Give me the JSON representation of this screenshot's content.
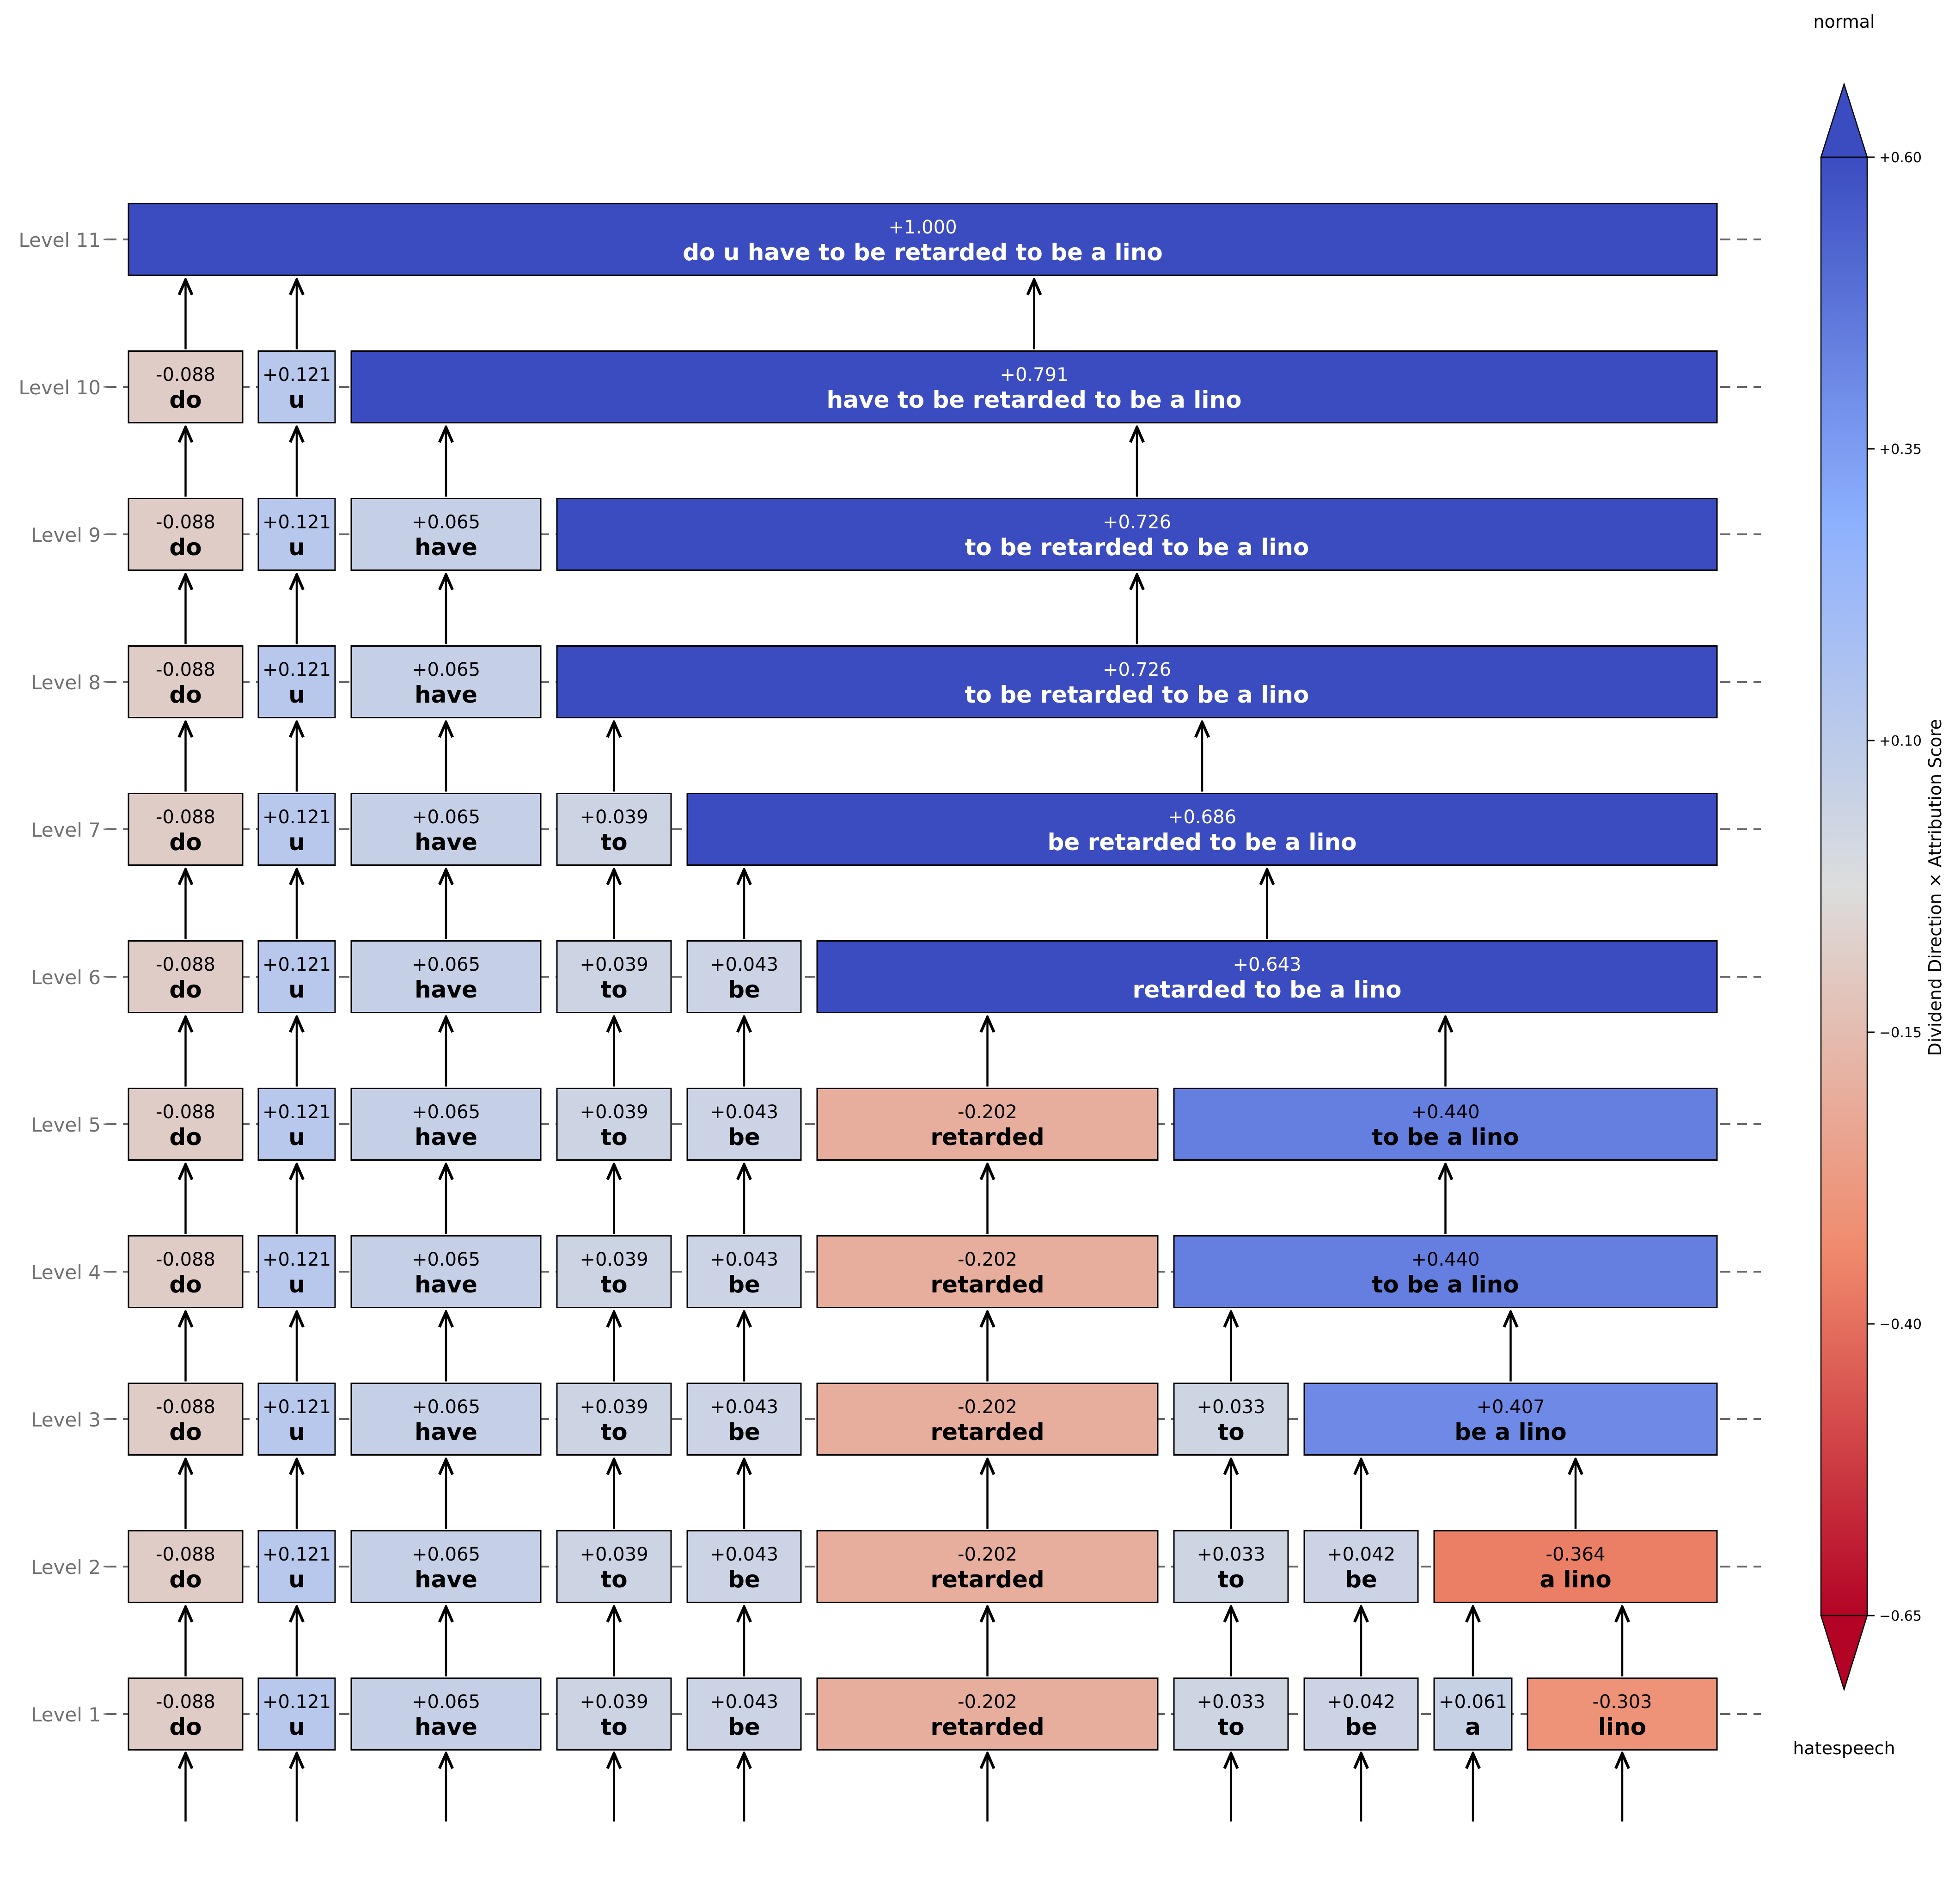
{
  "legend": {
    "top_label": "normal",
    "bottom_label": "hatespeech",
    "axis_label": "Dividend Direction × Attribution Score",
    "ticks": [
      "+0.60",
      "+0.35",
      "+0.10",
      "−0.15",
      "−0.40",
      "−0.65"
    ],
    "tick_values": [
      0.6,
      0.35,
      0.1,
      -0.15,
      -0.4,
      -0.65
    ],
    "range": [
      -0.65,
      0.6
    ],
    "colormap": [
      "#b40426",
      "#f08a6c",
      "#dcdddd",
      "#8db0fe",
      "#3b4cc0"
    ]
  },
  "tokens": [
    "do",
    "u",
    "have",
    "to",
    "be",
    "retarded",
    "to",
    "be",
    "a",
    "lino"
  ],
  "colors": {
    "box_border": "#000000",
    "level_label": "#707070",
    "dashed_line": "#666666",
    "arrow": "#000000"
  },
  "levels": [
    {
      "label": "Level 11",
      "nodes": [
        {
          "score": "+1.000",
          "text": "do u have to be retarded to be a lino",
          "value": 1.0,
          "start": 0,
          "end": 9
        }
      ]
    },
    {
      "label": "Level 10",
      "nodes": [
        {
          "score": "-0.088",
          "text": "do",
          "value": -0.088,
          "start": 0,
          "end": 0
        },
        {
          "score": "+0.121",
          "text": "u",
          "value": 0.121,
          "start": 1,
          "end": 1
        },
        {
          "score": "+0.791",
          "text": "have to be retarded to be a lino",
          "value": 0.791,
          "start": 2,
          "end": 9
        }
      ]
    },
    {
      "label": "Level 9",
      "nodes": [
        {
          "score": "-0.088",
          "text": "do",
          "value": -0.088,
          "start": 0,
          "end": 0
        },
        {
          "score": "+0.121",
          "text": "u",
          "value": 0.121,
          "start": 1,
          "end": 1
        },
        {
          "score": "+0.065",
          "text": "have",
          "value": 0.065,
          "start": 2,
          "end": 2
        },
        {
          "score": "+0.726",
          "text": "to be retarded to be a lino",
          "value": 0.726,
          "start": 3,
          "end": 9
        }
      ]
    },
    {
      "label": "Level 8",
      "nodes": [
        {
          "score": "-0.088",
          "text": "do",
          "value": -0.088,
          "start": 0,
          "end": 0
        },
        {
          "score": "+0.121",
          "text": "u",
          "value": 0.121,
          "start": 1,
          "end": 1
        },
        {
          "score": "+0.065",
          "text": "have",
          "value": 0.065,
          "start": 2,
          "end": 2
        },
        {
          "score": "+0.726",
          "text": "to be retarded to be a lino",
          "value": 0.726,
          "start": 3,
          "end": 9
        }
      ]
    },
    {
      "label": "Level 7",
      "nodes": [
        {
          "score": "-0.088",
          "text": "do",
          "value": -0.088,
          "start": 0,
          "end": 0
        },
        {
          "score": "+0.121",
          "text": "u",
          "value": 0.121,
          "start": 1,
          "end": 1
        },
        {
          "score": "+0.065",
          "text": "have",
          "value": 0.065,
          "start": 2,
          "end": 2
        },
        {
          "score": "+0.039",
          "text": "to",
          "value": 0.039,
          "start": 3,
          "end": 3
        },
        {
          "score": "+0.686",
          "text": "be retarded to be a lino",
          "value": 0.686,
          "start": 4,
          "end": 9
        }
      ]
    },
    {
      "label": "Level 6",
      "nodes": [
        {
          "score": "-0.088",
          "text": "do",
          "value": -0.088,
          "start": 0,
          "end": 0
        },
        {
          "score": "+0.121",
          "text": "u",
          "value": 0.121,
          "start": 1,
          "end": 1
        },
        {
          "score": "+0.065",
          "text": "have",
          "value": 0.065,
          "start": 2,
          "end": 2
        },
        {
          "score": "+0.039",
          "text": "to",
          "value": 0.039,
          "start": 3,
          "end": 3
        },
        {
          "score": "+0.043",
          "text": "be",
          "value": 0.043,
          "start": 4,
          "end": 4
        },
        {
          "score": "+0.643",
          "text": "retarded to be a lino",
          "value": 0.643,
          "start": 5,
          "end": 9
        }
      ]
    },
    {
      "label": "Level 5",
      "nodes": [
        {
          "score": "-0.088",
          "text": "do",
          "value": -0.088,
          "start": 0,
          "end": 0
        },
        {
          "score": "+0.121",
          "text": "u",
          "value": 0.121,
          "start": 1,
          "end": 1
        },
        {
          "score": "+0.065",
          "text": "have",
          "value": 0.065,
          "start": 2,
          "end": 2
        },
        {
          "score": "+0.039",
          "text": "to",
          "value": 0.039,
          "start": 3,
          "end": 3
        },
        {
          "score": "+0.043",
          "text": "be",
          "value": 0.043,
          "start": 4,
          "end": 4
        },
        {
          "score": "-0.202",
          "text": "retarded",
          "value": -0.202,
          "start": 5,
          "end": 5
        },
        {
          "score": "+0.440",
          "text": "to be a lino",
          "value": 0.44,
          "start": 6,
          "end": 9
        }
      ]
    },
    {
      "label": "Level 4",
      "nodes": [
        {
          "score": "-0.088",
          "text": "do",
          "value": -0.088,
          "start": 0,
          "end": 0
        },
        {
          "score": "+0.121",
          "text": "u",
          "value": 0.121,
          "start": 1,
          "end": 1
        },
        {
          "score": "+0.065",
          "text": "have",
          "value": 0.065,
          "start": 2,
          "end": 2
        },
        {
          "score": "+0.039",
          "text": "to",
          "value": 0.039,
          "start": 3,
          "end": 3
        },
        {
          "score": "+0.043",
          "text": "be",
          "value": 0.043,
          "start": 4,
          "end": 4
        },
        {
          "score": "-0.202",
          "text": "retarded",
          "value": -0.202,
          "start": 5,
          "end": 5
        },
        {
          "score": "+0.440",
          "text": "to be a lino",
          "value": 0.44,
          "start": 6,
          "end": 9
        }
      ]
    },
    {
      "label": "Level 3",
      "nodes": [
        {
          "score": "-0.088",
          "text": "do",
          "value": -0.088,
          "start": 0,
          "end": 0
        },
        {
          "score": "+0.121",
          "text": "u",
          "value": 0.121,
          "start": 1,
          "end": 1
        },
        {
          "score": "+0.065",
          "text": "have",
          "value": 0.065,
          "start": 2,
          "end": 2
        },
        {
          "score": "+0.039",
          "text": "to",
          "value": 0.039,
          "start": 3,
          "end": 3
        },
        {
          "score": "+0.043",
          "text": "be",
          "value": 0.043,
          "start": 4,
          "end": 4
        },
        {
          "score": "-0.202",
          "text": "retarded",
          "value": -0.202,
          "start": 5,
          "end": 5
        },
        {
          "score": "+0.033",
          "text": "to",
          "value": 0.033,
          "start": 6,
          "end": 6
        },
        {
          "score": "+0.407",
          "text": "be a lino",
          "value": 0.407,
          "start": 7,
          "end": 9
        }
      ]
    },
    {
      "label": "Level 2",
      "nodes": [
        {
          "score": "-0.088",
          "text": "do",
          "value": -0.088,
          "start": 0,
          "end": 0
        },
        {
          "score": "+0.121",
          "text": "u",
          "value": 0.121,
          "start": 1,
          "end": 1
        },
        {
          "score": "+0.065",
          "text": "have",
          "value": 0.065,
          "start": 2,
          "end": 2
        },
        {
          "score": "+0.039",
          "text": "to",
          "value": 0.039,
          "start": 3,
          "end": 3
        },
        {
          "score": "+0.043",
          "text": "be",
          "value": 0.043,
          "start": 4,
          "end": 4
        },
        {
          "score": "-0.202",
          "text": "retarded",
          "value": -0.202,
          "start": 5,
          "end": 5
        },
        {
          "score": "+0.033",
          "text": "to",
          "value": 0.033,
          "start": 6,
          "end": 6
        },
        {
          "score": "+0.042",
          "text": "be",
          "value": 0.042,
          "start": 7,
          "end": 7
        },
        {
          "score": "-0.364",
          "text": "a lino",
          "value": -0.364,
          "start": 8,
          "end": 9
        }
      ]
    },
    {
      "label": "Level 1",
      "nodes": [
        {
          "score": "-0.088",
          "text": "do",
          "value": -0.088,
          "start": 0,
          "end": 0
        },
        {
          "score": "+0.121",
          "text": "u",
          "value": 0.121,
          "start": 1,
          "end": 1
        },
        {
          "score": "+0.065",
          "text": "have",
          "value": 0.065,
          "start": 2,
          "end": 2
        },
        {
          "score": "+0.039",
          "text": "to",
          "value": 0.039,
          "start": 3,
          "end": 3
        },
        {
          "score": "+0.043",
          "text": "be",
          "value": 0.043,
          "start": 4,
          "end": 4
        },
        {
          "score": "-0.202",
          "text": "retarded",
          "value": -0.202,
          "start": 5,
          "end": 5
        },
        {
          "score": "+0.033",
          "text": "to",
          "value": 0.033,
          "start": 6,
          "end": 6
        },
        {
          "score": "+0.042",
          "text": "be",
          "value": 0.042,
          "start": 7,
          "end": 7
        },
        {
          "score": "+0.061",
          "text": "a",
          "value": 0.061,
          "start": 8,
          "end": 8
        },
        {
          "score": "-0.303",
          "text": "lino",
          "value": -0.303,
          "start": 9,
          "end": 9
        }
      ]
    }
  ]
}
